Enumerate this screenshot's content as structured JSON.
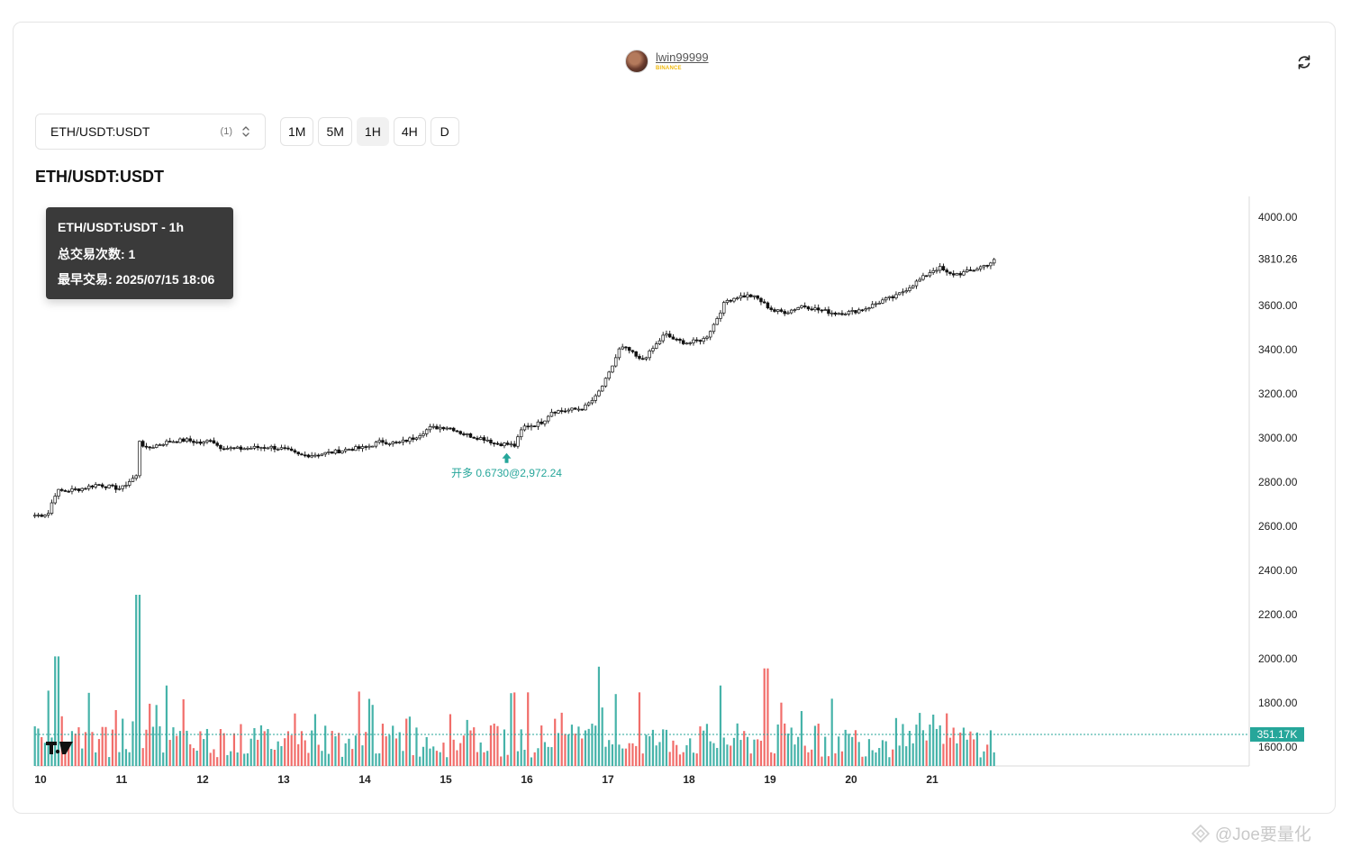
{
  "header": {
    "username": "lwin99999",
    "exchange": "BINANCE",
    "refresh_icon": "refresh-icon"
  },
  "controls": {
    "symbol": "ETH/USDT:USDT",
    "symbol_count": "(1)",
    "timeframes": [
      "1M",
      "5M",
      "1H",
      "4H",
      "D"
    ],
    "active_timeframe": "1H"
  },
  "page_title": "ETH/USDT:USDT",
  "tooltip": {
    "title": "ETH/USDT:USDT - 1h",
    "trade_count": "总交易次数: 1",
    "earliest_trade": "最早交易: 2025/07/15 18:06"
  },
  "trade_marker": {
    "label": "开多 0.6730@2,972.24",
    "day": 15.75,
    "price": 2972.24,
    "color": "#26a69a"
  },
  "watermark": "@Joe要量化",
  "chart_data": {
    "type": "candlestick",
    "ylim": [
      1600,
      4080
    ],
    "y_ticks": [
      "4000.00",
      "3600.00",
      "3400.00",
      "3200.00",
      "3000.00",
      "2800.00",
      "2600.00",
      "2400.00",
      "2200.00",
      "2000.00",
      "1800.00",
      "1600.00"
    ],
    "last_price": "3810.26",
    "x_ticks": [
      "10",
      "11",
      "12",
      "13",
      "14",
      "15",
      "16",
      "17",
      "18",
      "19",
      "20",
      "21"
    ],
    "volume_last_label": "351.17K",
    "colors": {
      "up": "#26a69a",
      "down": "#ef5350",
      "candle": "#111111"
    },
    "price_path": [
      [
        10.0,
        2650
      ],
      [
        10.1,
        2660
      ],
      [
        10.15,
        2720
      ],
      [
        10.2,
        2760
      ],
      [
        10.3,
        2760
      ],
      [
        10.5,
        2770
      ],
      [
        10.7,
        2790
      ],
      [
        10.9,
        2775
      ],
      [
        11.0,
        2770
      ],
      [
        11.05,
        2790
      ],
      [
        11.15,
        2820
      ],
      [
        11.2,
        2830
      ],
      [
        11.22,
        2990
      ],
      [
        11.3,
        2950
      ],
      [
        11.45,
        2970
      ],
      [
        11.6,
        2985
      ],
      [
        11.8,
        2990
      ],
      [
        12.0,
        2975
      ],
      [
        12.1,
        2995
      ],
      [
        12.2,
        2960
      ],
      [
        12.4,
        2950
      ],
      [
        12.6,
        2955
      ],
      [
        12.8,
        2960
      ],
      [
        13.0,
        2950
      ],
      [
        13.2,
        2920
      ],
      [
        13.4,
        2925
      ],
      [
        13.6,
        2935
      ],
      [
        13.8,
        2950
      ],
      [
        14.0,
        2955
      ],
      [
        14.2,
        2985
      ],
      [
        14.4,
        2975
      ],
      [
        14.6,
        3000
      ],
      [
        14.8,
        3045
      ],
      [
        15.0,
        3050
      ],
      [
        15.1,
        3040
      ],
      [
        15.2,
        3020
      ],
      [
        15.35,
        3005
      ],
      [
        15.5,
        2995
      ],
      [
        15.6,
        2975
      ],
      [
        15.75,
        2972
      ],
      [
        15.85,
        2965
      ],
      [
        15.95,
        3050
      ],
      [
        16.1,
        3060
      ],
      [
        16.2,
        3075
      ],
      [
        16.3,
        3120
      ],
      [
        16.5,
        3125
      ],
      [
        16.7,
        3135
      ],
      [
        16.85,
        3185
      ],
      [
        17.0,
        3280
      ],
      [
        17.15,
        3410
      ],
      [
        17.25,
        3400
      ],
      [
        17.4,
        3350
      ],
      [
        17.5,
        3380
      ],
      [
        17.7,
        3470
      ],
      [
        17.85,
        3440
      ],
      [
        18.0,
        3430
      ],
      [
        18.2,
        3450
      ],
      [
        18.3,
        3510
      ],
      [
        18.45,
        3620
      ],
      [
        18.6,
        3640
      ],
      [
        18.75,
        3645
      ],
      [
        18.85,
        3630
      ],
      [
        18.95,
        3600
      ],
      [
        19.05,
        3575
      ],
      [
        19.2,
        3570
      ],
      [
        19.4,
        3600
      ],
      [
        19.6,
        3580
      ],
      [
        19.8,
        3565
      ],
      [
        20.0,
        3570
      ],
      [
        20.2,
        3590
      ],
      [
        20.4,
        3625
      ],
      [
        20.55,
        3640
      ],
      [
        20.7,
        3680
      ],
      [
        20.9,
        3730
      ],
      [
        21.0,
        3760
      ],
      [
        21.1,
        3770
      ],
      [
        21.2,
        3740
      ],
      [
        21.35,
        3745
      ],
      [
        21.5,
        3760
      ],
      [
        21.6,
        3775
      ],
      [
        21.7,
        3790
      ],
      [
        21.8,
        3810
      ]
    ],
    "volume_spikes": [
      [
        10.1,
        0.44
      ],
      [
        10.2,
        0.64
      ],
      [
        11.2,
        1.0
      ],
      [
        11.55,
        0.47
      ],
      [
        16.0,
        0.43
      ],
      [
        16.9,
        0.58
      ],
      [
        17.1,
        0.42
      ],
      [
        17.4,
        0.43
      ],
      [
        18.4,
        0.47
      ],
      [
        18.95,
        0.57
      ],
      [
        19.15,
        0.37
      ],
      [
        20.55,
        0.28
      ],
      [
        20.85,
        0.31
      ],
      [
        21.0,
        0.3
      ]
    ]
  }
}
